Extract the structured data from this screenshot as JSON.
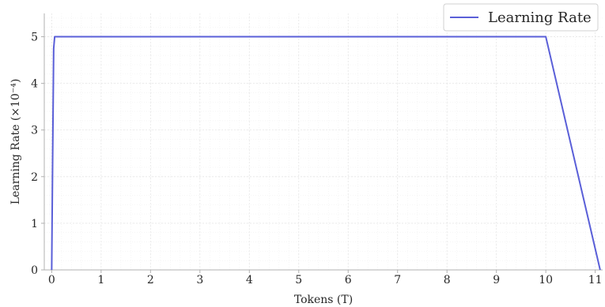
{
  "chart_data": {
    "type": "line",
    "xlabel": "Tokens (T)",
    "ylabel": "Learning Rate (×10⁻⁴)",
    "xlim": [
      -0.15,
      11.15
    ],
    "ylim": [
      0,
      5.5
    ],
    "xticks": [
      "0",
      "1",
      "2",
      "3",
      "4",
      "5",
      "6",
      "7",
      "8",
      "9",
      "10",
      "11"
    ],
    "yticks": [
      "0",
      "1",
      "2",
      "3",
      "4",
      "5"
    ],
    "grid": true,
    "legend_position": "top-right",
    "series": [
      {
        "name": "Learning Rate",
        "color": "#5a5fd8",
        "points": [
          [
            0,
            0
          ],
          [
            0.02,
            2.5
          ],
          [
            0.04,
            4.75
          ],
          [
            0.06,
            5.0
          ],
          [
            10.0,
            5.0
          ],
          [
            11.1,
            0
          ]
        ]
      }
    ]
  }
}
